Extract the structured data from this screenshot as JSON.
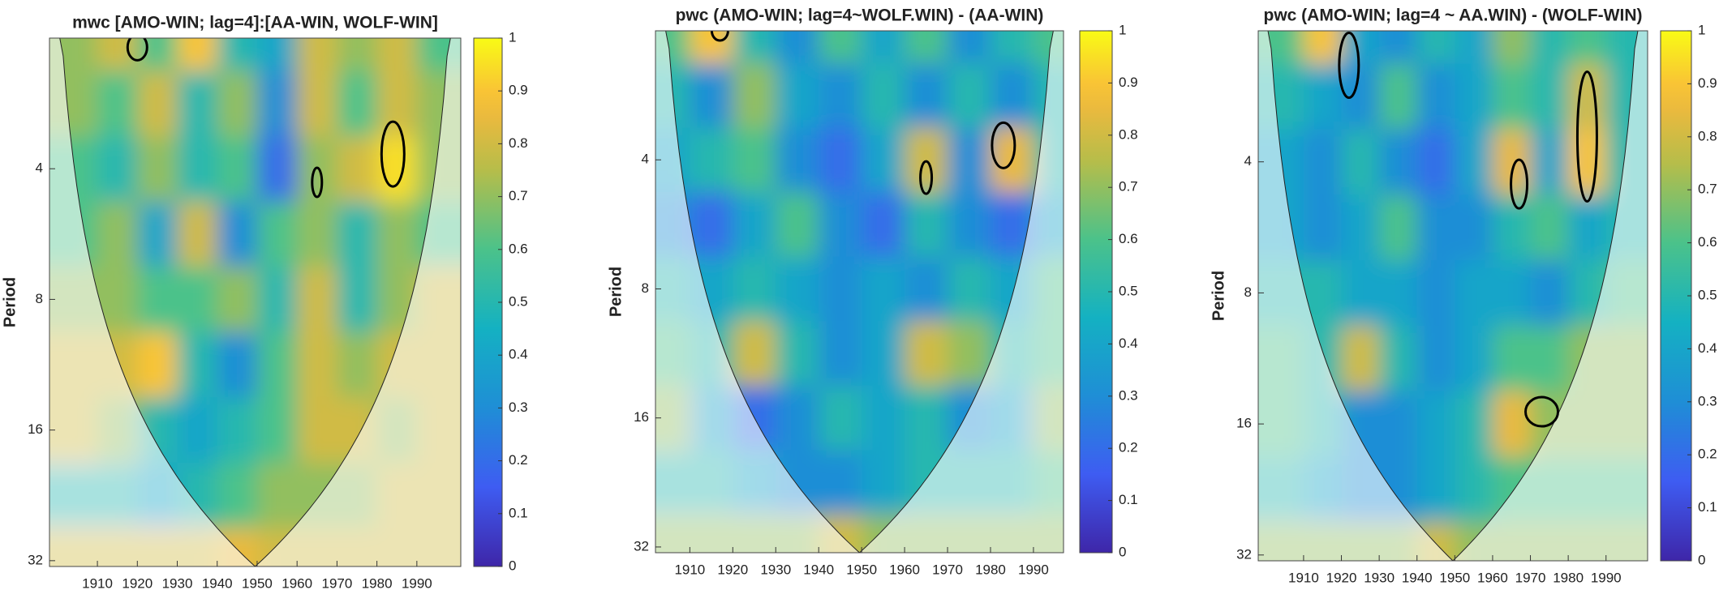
{
  "chart_data": [
    {
      "type": "heatmap",
      "title": "mwc [AMO-WIN; lag=4]:[AA-WIN, WOLF-WIN]",
      "y_label": "Period",
      "yscale": "log",
      "colormap": "parula",
      "x": [
        1905,
        1915,
        1925,
        1935,
        1945,
        1955,
        1965,
        1975,
        1985,
        1995
      ],
      "y": [
        2,
        2.83,
        4,
        5.66,
        8,
        11.3,
        16,
        22.6,
        32
      ],
      "z": [
        [
          0.7,
          0.8,
          0.6,
          0.9,
          0.5,
          0.4,
          0.8,
          0.7,
          0.8,
          0.6
        ],
        [
          0.7,
          0.6,
          0.8,
          0.5,
          0.7,
          0.3,
          0.8,
          0.6,
          0.8,
          0.7
        ],
        [
          0.6,
          0.5,
          0.7,
          0.5,
          0.6,
          0.2,
          0.7,
          0.8,
          0.95,
          0.7
        ],
        [
          0.6,
          0.7,
          0.4,
          0.8,
          0.3,
          0.6,
          0.7,
          0.5,
          0.7,
          0.6
        ],
        [
          0.7,
          0.7,
          0.6,
          0.6,
          0.7,
          0.5,
          0.8,
          0.5,
          0.7,
          0.8
        ],
        [
          0.8,
          0.8,
          0.9,
          0.5,
          0.3,
          0.6,
          0.8,
          0.7,
          0.8,
          0.8
        ],
        [
          0.8,
          0.7,
          0.5,
          0.4,
          0.5,
          0.6,
          0.8,
          0.8,
          0.7,
          0.8
        ],
        [
          0.5,
          0.5,
          0.4,
          0.5,
          0.6,
          0.7,
          0.7,
          0.7,
          0.8,
          0.8
        ],
        [
          0.8,
          0.8,
          0.8,
          0.8,
          0.85,
          0.8,
          0.8,
          0.8,
          0.8,
          0.8
        ]
      ],
      "xlim": [
        1898,
        2001
      ],
      "xticks": [
        1910,
        1920,
        1930,
        1940,
        1950,
        1960,
        1970,
        1980,
        1990
      ],
      "ylim": [
        2,
        33
      ],
      "yticks": [
        4,
        8,
        16,
        32
      ],
      "clim": [
        0,
        1
      ],
      "cticks": [
        0,
        0.1,
        0.2,
        0.3,
        0.4,
        0.5,
        0.6,
        0.7,
        0.8,
        0.9,
        1
      ]
    },
    {
      "type": "heatmap",
      "title": "pwc (AMO-WIN; lag=4~WOLF.WIN) - (AA-WIN)",
      "y_label": "Period",
      "yscale": "log",
      "colormap": "parula",
      "x": [
        1905,
        1915,
        1925,
        1935,
        1945,
        1955,
        1965,
        1975,
        1985,
        1995
      ],
      "y": [
        2,
        2.83,
        4,
        5.66,
        8,
        11.3,
        16,
        22.6,
        32
      ],
      "z": [
        [
          0.6,
          0.9,
          0.5,
          0.3,
          0.6,
          0.4,
          0.6,
          0.3,
          0.5,
          0.6
        ],
        [
          0.5,
          0.3,
          0.7,
          0.4,
          0.3,
          0.5,
          0.3,
          0.5,
          0.3,
          0.5
        ],
        [
          0.4,
          0.5,
          0.6,
          0.3,
          0.2,
          0.4,
          0.8,
          0.3,
          0.85,
          0.5
        ],
        [
          0.3,
          0.2,
          0.4,
          0.6,
          0.3,
          0.2,
          0.5,
          0.3,
          0.2,
          0.4
        ],
        [
          0.5,
          0.4,
          0.5,
          0.4,
          0.3,
          0.4,
          0.3,
          0.5,
          0.4,
          0.6
        ],
        [
          0.6,
          0.5,
          0.8,
          0.5,
          0.3,
          0.4,
          0.8,
          0.7,
          0.5,
          0.6
        ],
        [
          0.7,
          0.4,
          0.2,
          0.3,
          0.5,
          0.4,
          0.5,
          0.3,
          0.4,
          0.7
        ],
        [
          0.5,
          0.5,
          0.4,
          0.3,
          0.3,
          0.4,
          0.5,
          0.5,
          0.5,
          0.6
        ],
        [
          0.7,
          0.7,
          0.7,
          0.7,
          0.8,
          0.7,
          0.7,
          0.7,
          0.7,
          0.7
        ]
      ],
      "xlim": [
        1902,
        1997
      ],
      "xticks": [
        1910,
        1920,
        1930,
        1940,
        1950,
        1960,
        1970,
        1980,
        1990
      ],
      "ylim": [
        2,
        33
      ],
      "yticks": [
        4,
        8,
        16,
        32
      ],
      "clim": [
        0,
        1
      ],
      "cticks": [
        0,
        0.1,
        0.2,
        0.3,
        0.4,
        0.5,
        0.6,
        0.7,
        0.8,
        0.9,
        1
      ]
    },
    {
      "type": "heatmap",
      "title": "pwc (AMO-WIN; lag=4 ~ AA.WIN) - (WOLF-WIN)",
      "y_label": "Period",
      "yscale": "log",
      "colormap": "parula",
      "x": [
        1905,
        1915,
        1925,
        1935,
        1945,
        1955,
        1965,
        1975,
        1985,
        1995
      ],
      "y": [
        2,
        2.83,
        4,
        5.66,
        8,
        11.3,
        16,
        22.6,
        32
      ],
      "z": [
        [
          0.6,
          0.9,
          0.4,
          0.3,
          0.5,
          0.4,
          0.7,
          0.5,
          0.6,
          0.5
        ],
        [
          0.5,
          0.4,
          0.3,
          0.6,
          0.3,
          0.4,
          0.6,
          0.5,
          0.8,
          0.5
        ],
        [
          0.4,
          0.3,
          0.5,
          0.3,
          0.2,
          0.4,
          0.85,
          0.4,
          0.9,
          0.5
        ],
        [
          0.4,
          0.3,
          0.4,
          0.6,
          0.3,
          0.3,
          0.5,
          0.6,
          0.4,
          0.5
        ],
        [
          0.5,
          0.5,
          0.4,
          0.4,
          0.3,
          0.4,
          0.4,
          0.3,
          0.5,
          0.6
        ],
        [
          0.6,
          0.5,
          0.8,
          0.5,
          0.3,
          0.4,
          0.6,
          0.6,
          0.7,
          0.7
        ],
        [
          0.6,
          0.5,
          0.3,
          0.3,
          0.4,
          0.5,
          0.85,
          0.7,
          0.7,
          0.7
        ],
        [
          0.5,
          0.4,
          0.3,
          0.3,
          0.4,
          0.5,
          0.6,
          0.6,
          0.6,
          0.6
        ],
        [
          0.7,
          0.7,
          0.7,
          0.7,
          0.8,
          0.7,
          0.7,
          0.7,
          0.7,
          0.7
        ]
      ],
      "xlim": [
        1898,
        2001
      ],
      "xticks": [
        1910,
        1920,
        1930,
        1940,
        1950,
        1960,
        1970,
        1980,
        1990
      ],
      "ylim": [
        2,
        33
      ],
      "yticks": [
        4,
        8,
        16,
        32
      ],
      "clim": [
        0,
        1
      ],
      "cticks": [
        0,
        0.1,
        0.2,
        0.3,
        0.4,
        0.5,
        0.6,
        0.7,
        0.8,
        0.9,
        1
      ]
    }
  ]
}
